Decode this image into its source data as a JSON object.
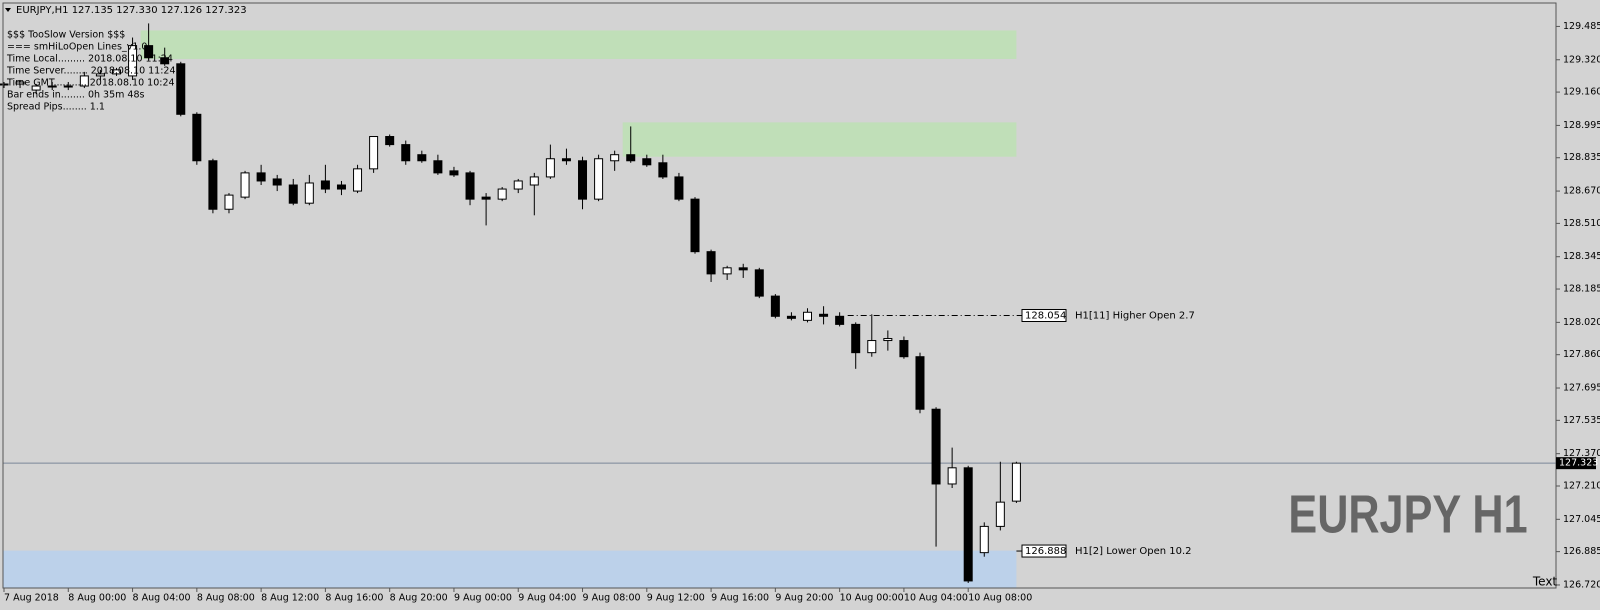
{
  "chart_data": {
    "type": "candlestick",
    "header": "EURJPY,H1  127.135 127.330 127.126 127.323",
    "info": [
      "$$$ TooSlow Version $$$",
      "=== smHiLoOpen Lines_v1.0",
      "Time Local......... 2018.08.10 11:24",
      "Time Server........ 2018.08.10 11:24",
      "Time GMT........... 2018.08.10 10:24",
      "Bar ends in........ 0h 35m 48s",
      "Spread Pips........ 1.1"
    ],
    "watermark": "EURJPY H1",
    "corner_text": "Text",
    "categories": [
      "7 Aug 2018",
      null,
      null,
      null,
      "8 Aug 00:00",
      null,
      null,
      null,
      "8 Aug 04:00",
      null,
      null,
      null,
      "8 Aug 08:00",
      null,
      null,
      null,
      "8 Aug 12:00",
      null,
      null,
      null,
      "8 Aug 16:00",
      null,
      null,
      null,
      "8 Aug 20:00",
      null,
      null,
      null,
      "9 Aug 00:00",
      null,
      null,
      null,
      "9 Aug 04:00",
      null,
      null,
      null,
      "9 Aug 08:00",
      null,
      null,
      null,
      "9 Aug 12:00",
      null,
      null,
      null,
      "9 Aug 16:00",
      null,
      null,
      null,
      "9 Aug 20:00",
      null,
      null,
      null,
      "10 Aug 00:00",
      null,
      null,
      null,
      "10 Aug 04:00",
      null,
      null,
      null,
      "10 Aug 08:00",
      null,
      null,
      null
    ],
    "open": [
      129.2,
      129.2,
      129.17,
      129.19,
      129.19,
      129.19,
      129.24,
      129.25,
      129.24,
      129.39,
      129.33,
      129.3,
      129.05,
      128.82,
      128.58,
      128.64,
      128.76,
      128.73,
      128.7,
      128.61,
      128.72,
      128.7,
      128.67,
      128.78,
      128.94,
      128.9,
      128.85,
      128.82,
      128.77,
      128.76,
      128.64,
      128.63,
      128.68,
      128.7,
      128.74,
      128.83,
      128.82,
      128.63,
      128.82,
      128.85,
      128.83,
      128.81,
      128.74,
      128.63,
      128.37,
      128.26,
      128.29,
      128.28,
      128.15,
      128.05,
      128.03,
      128.06,
      128.05,
      128.01,
      127.87,
      127.93,
      127.93,
      127.85,
      127.59,
      127.22,
      127.3,
      126.88,
      127.01,
      127.135
    ],
    "high": [
      129.21,
      129.22,
      129.2,
      129.21,
      129.21,
      129.26,
      129.27,
      129.28,
      129.43,
      129.5,
      129.38,
      129.31,
      129.06,
      128.83,
      128.66,
      128.77,
      128.8,
      128.75,
      128.73,
      128.75,
      128.8,
      128.72,
      128.8,
      128.94,
      128.95,
      128.92,
      128.87,
      128.85,
      128.79,
      128.77,
      128.66,
      128.69,
      128.73,
      128.76,
      128.9,
      128.88,
      128.84,
      128.85,
      128.87,
      128.99,
      128.85,
      128.85,
      128.76,
      128.64,
      128.38,
      128.3,
      128.31,
      128.29,
      128.16,
      128.07,
      128.09,
      128.1,
      128.07,
      128.02,
      128.06,
      127.98,
      127.95,
      127.87,
      127.6,
      127.4,
      127.31,
      127.03,
      127.33,
      127.33
    ],
    "low": [
      129.18,
      129.18,
      129.15,
      129.17,
      129.17,
      129.18,
      129.22,
      129.24,
      129.22,
      129.32,
      129.29,
      129.04,
      128.8,
      128.56,
      128.56,
      128.63,
      128.7,
      128.67,
      128.6,
      128.6,
      128.66,
      128.65,
      128.66,
      128.76,
      128.89,
      128.8,
      128.81,
      128.75,
      128.74,
      128.6,
      128.5,
      128.62,
      128.66,
      128.55,
      128.73,
      128.8,
      128.58,
      128.62,
      128.77,
      128.81,
      128.79,
      128.73,
      128.62,
      128.36,
      128.22,
      128.23,
      128.24,
      128.14,
      128.04,
      128.03,
      128.02,
      128.01,
      128.0,
      127.79,
      127.85,
      127.88,
      127.84,
      127.57,
      126.91,
      127.2,
      126.73,
      126.86,
      126.99,
      127.126
    ],
    "close": [
      129.2,
      129.21,
      129.19,
      129.19,
      129.19,
      129.24,
      129.25,
      129.27,
      129.39,
      129.33,
      129.3,
      129.05,
      128.82,
      128.58,
      128.65,
      128.76,
      128.72,
      128.7,
      128.61,
      128.71,
      128.68,
      128.68,
      128.78,
      128.94,
      128.9,
      128.82,
      128.82,
      128.76,
      128.75,
      128.63,
      128.63,
      128.68,
      128.72,
      128.74,
      128.83,
      128.82,
      128.63,
      128.83,
      128.85,
      128.82,
      128.8,
      128.74,
      128.63,
      128.37,
      128.26,
      128.29,
      128.28,
      128.15,
      128.05,
      128.04,
      128.07,
      128.05,
      128.01,
      127.87,
      127.93,
      127.94,
      127.85,
      127.59,
      127.22,
      127.3,
      126.74,
      127.01,
      127.13,
      127.323
    ],
    "zones": [
      {
        "top": 129.465,
        "bottom": 129.324,
        "color": "#c0dfb8"
      },
      {
        "top": 129.01,
        "bottom": 128.84,
        "color": "#c0dfb8"
      },
      {
        "top": 126.89,
        "bottom": 126.705,
        "color": "#bcd1ea"
      }
    ],
    "levels": [
      {
        "value": 128.054,
        "name": "H1[11] Higher Open 2.7"
      },
      {
        "value": 126.888,
        "name": "H1[2] Lower Open 10.2"
      }
    ],
    "last_price": 127.323,
    "ylim": [
      126.705,
      129.601
    ],
    "yticks": [
      129.485,
      {
        "value": 129.32,
        "label": "129.320"
      },
      {
        "value": 129.16,
        "label": "129.160"
      },
      128.995,
      128.835,
      {
        "value": 128.67,
        "label": "128.670"
      },
      {
        "value": 128.51,
        "label": "128.510"
      },
      128.345,
      128.185,
      {
        "value": 128.02,
        "label": "128.020"
      },
      {
        "value": 127.86,
        "label": "127.860"
      },
      127.695,
      127.535,
      {
        "value": 127.37,
        "label": "127.370"
      },
      {
        "value": 127.21,
        "label": "127.210"
      },
      127.045,
      126.885,
      {
        "value": 126.72,
        "label": "126.720"
      }
    ]
  }
}
